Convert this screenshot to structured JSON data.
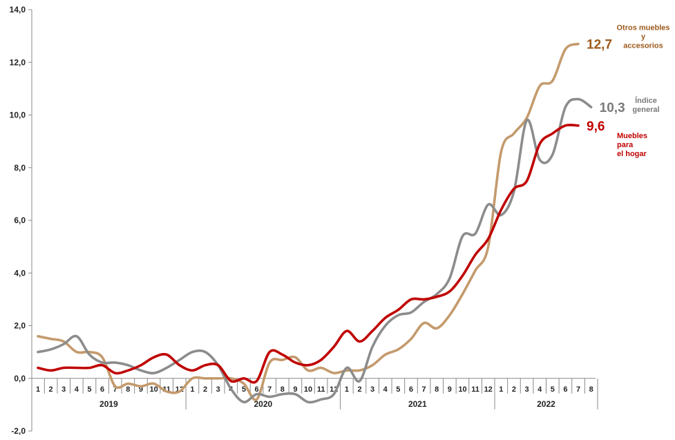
{
  "chart_data": {
    "type": "line",
    "ylim": [
      -2,
      14
    ],
    "yticks": [
      "-2,0",
      "0,0",
      "2,0",
      "4,0",
      "6,0",
      "8,0",
      "10,0",
      "12,0",
      "14,0"
    ],
    "x_month_labels": [
      "1",
      "2",
      "3",
      "4",
      "5",
      "6",
      "7",
      "8",
      "9",
      "10",
      "11",
      "12",
      "1",
      "2",
      "3",
      "4",
      "5",
      "6",
      "7",
      "8",
      "9",
      "10",
      "11",
      "12",
      "1",
      "2",
      "3",
      "4",
      "5",
      "6",
      "7",
      "8",
      "9",
      "10",
      "11",
      "12",
      "1",
      "2",
      "3",
      "4",
      "5",
      "6",
      "7",
      "8"
    ],
    "years": [
      "2019",
      "2020",
      "2021",
      "2022"
    ],
    "series": [
      {
        "name": "Otros muebles y accesorios",
        "name_lines": [
          "Otros muebles",
          "y",
          "accesorios"
        ],
        "color": "#c49a6c",
        "end_label": "12,7",
        "end_label_color": "#9c5a1c",
        "values": [
          1.6,
          1.5,
          1.4,
          1.0,
          1.0,
          0.8,
          -0.3,
          -0.2,
          -0.3,
          -0.2,
          -0.5,
          -0.5,
          0.0,
          0.0,
          0.0,
          0.0,
          -0.2,
          -0.8,
          0.6,
          0.7,
          0.8,
          0.3,
          0.4,
          0.2,
          0.3,
          0.3,
          0.5,
          0.9,
          1.1,
          1.5,
          2.1,
          1.9,
          2.4,
          3.2,
          4.1,
          5.0,
          8.6,
          9.3,
          9.9,
          11.1,
          11.3,
          12.5,
          12.7
        ]
      },
      {
        "name": "Índice general",
        "name_lines": [
          "Índice",
          "general"
        ],
        "color": "#8c8c8c",
        "end_label": "10,3",
        "end_label_color": "#7a7a7a",
        "values": [
          1.0,
          1.1,
          1.3,
          1.6,
          0.9,
          0.6,
          0.6,
          0.5,
          0.3,
          0.2,
          0.4,
          0.7,
          1.0,
          1.0,
          0.5,
          -0.4,
          -0.9,
          -0.6,
          -0.7,
          -0.6,
          -0.6,
          -0.9,
          -0.8,
          -0.6,
          0.4,
          -0.1,
          1.2,
          2.0,
          2.4,
          2.5,
          2.9,
          3.2,
          3.8,
          5.4,
          5.5,
          6.6,
          6.2,
          7.1,
          9.8,
          8.3,
          8.5,
          10.3,
          10.6,
          10.3
        ]
      },
      {
        "name": "Muebles para el hogar",
        "name_lines": [
          "Muebles",
          "para",
          "el hogar"
        ],
        "color": "#c00000",
        "end_label": "9,6",
        "end_label_color": "#c00000",
        "values": [
          0.4,
          0.3,
          0.4,
          0.4,
          0.4,
          0.5,
          0.2,
          0.3,
          0.5,
          0.8,
          0.9,
          0.5,
          0.3,
          0.5,
          0.5,
          -0.1,
          0.0,
          -0.1,
          1.0,
          0.9,
          0.6,
          0.5,
          0.7,
          1.2,
          1.8,
          1.4,
          1.8,
          2.3,
          2.6,
          3.0,
          3.0,
          3.1,
          3.3,
          3.9,
          4.7,
          5.3,
          6.4,
          7.2,
          7.5,
          8.9,
          9.3,
          9.6,
          9.6
        ]
      }
    ]
  }
}
